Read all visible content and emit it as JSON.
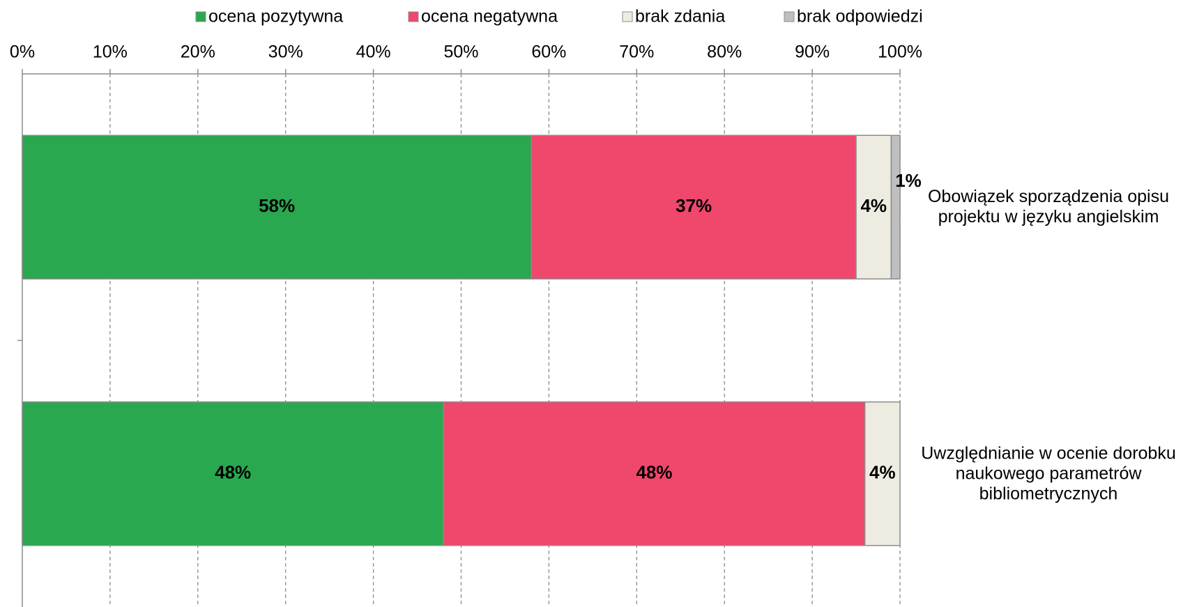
{
  "chart_data": {
    "type": "stacked-bar-horizontal",
    "categories": [
      "Obowiązek sporządzenia opisu projektu w języku angielskim",
      "Uwzględnianie w ocenie dorobku naukowego parametrów bibliometrycznych"
    ],
    "series": [
      {
        "name": "ocena pozytywna",
        "color": "#2aa84f",
        "values": [
          58,
          48
        ],
        "value_labels": [
          "58%",
          "48%"
        ]
      },
      {
        "name": "ocena negatywna",
        "color": "#f0476d",
        "values": [
          37,
          48
        ],
        "value_labels": [
          "37%",
          "48%"
        ]
      },
      {
        "name": "brak zdania",
        "color": "#eeece1",
        "values": [
          4,
          4
        ],
        "value_labels": [
          "4%",
          "4%"
        ]
      },
      {
        "name": "brak odpowiedzi",
        "color": "#bfbfbf",
        "values": [
          1,
          null
        ],
        "value_labels": [
          "1%",
          null
        ]
      }
    ],
    "xlim": [
      0,
      100
    ],
    "xticks": [
      {
        "value": 0,
        "label": "0%"
      },
      {
        "value": 10,
        "label": "10%"
      },
      {
        "value": 20,
        "label": "20%"
      },
      {
        "value": 30,
        "label": "30%"
      },
      {
        "value": 40,
        "label": "40%"
      },
      {
        "value": 50,
        "label": "50%"
      },
      {
        "value": 60,
        "label": "60%"
      },
      {
        "value": 70,
        "label": "70%"
      },
      {
        "value": 80,
        "label": "80%"
      },
      {
        "value": 90,
        "label": "90%"
      },
      {
        "value": 100,
        "label": "100%"
      }
    ],
    "grid": true,
    "legend": "top"
  }
}
